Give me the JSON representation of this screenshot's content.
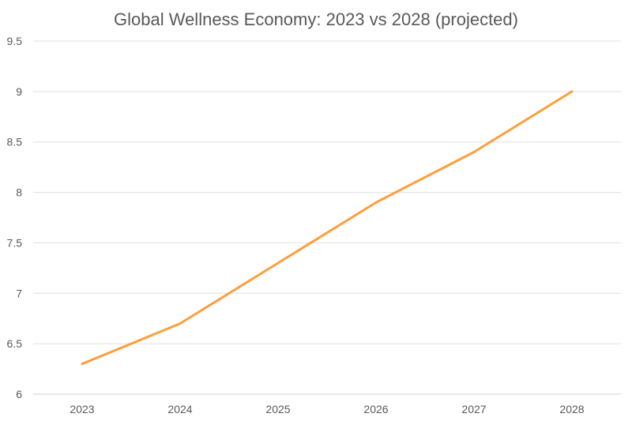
{
  "chart_data": {
    "type": "line",
    "title": "Global Wellness Economy: 2023 vs 2028 (projected)",
    "xlabel": "",
    "ylabel": "",
    "categories": [
      "2023",
      "2024",
      "2025",
      "2026",
      "2027",
      "2028"
    ],
    "series": [
      {
        "values": [
          6.3,
          6.7,
          7.3,
          7.9,
          8.4,
          9.0
        ],
        "color": "#FF9E3D"
      }
    ],
    "ylim": [
      6,
      9.5
    ],
    "yticks": [
      "6",
      "6.5",
      "7",
      "7.5",
      "8",
      "8.5",
      "9",
      "9.5"
    ],
    "grid": true,
    "legend": "none"
  }
}
